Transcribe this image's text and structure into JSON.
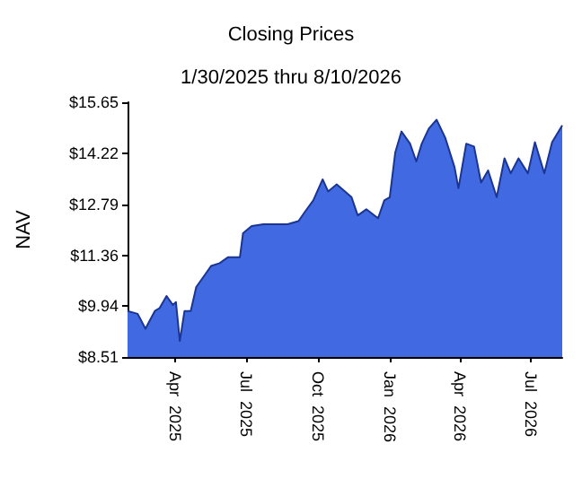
{
  "chart_data": {
    "type": "area",
    "title": "Closing Prices",
    "subtitle": "1/30/2025 thru 8/10/2026",
    "ylabel": "NAV",
    "x": [
      "2025-01-30",
      "2025-02-12",
      "2025-02-22",
      "2025-02-26",
      "2025-03-06",
      "2025-03-12",
      "2025-03-21",
      "2025-03-29",
      "2025-04-02",
      "2025-04-07",
      "2025-04-13",
      "2025-04-21",
      "2025-04-28",
      "2025-05-09",
      "2025-05-17",
      "2025-05-28",
      "2025-06-08",
      "2025-06-23",
      "2025-06-27",
      "2025-07-08",
      "2025-07-23",
      "2025-08-07",
      "2025-08-23",
      "2025-09-06",
      "2025-09-14",
      "2025-09-25",
      "2025-10-07",
      "2025-10-14",
      "2025-10-25",
      "2025-11-13",
      "2025-11-21",
      "2025-12-02",
      "2025-12-17",
      "2025-12-25",
      "2026-01-01",
      "2026-01-08",
      "2026-01-16",
      "2026-01-27",
      "2026-02-04",
      "2026-02-11",
      "2026-02-20",
      "2026-03-02",
      "2026-03-13",
      "2026-03-25",
      "2026-03-30",
      "2026-04-09",
      "2026-04-19",
      "2026-04-28",
      "2026-05-07",
      "2026-05-18",
      "2026-05-28",
      "2026-06-05",
      "2026-06-15",
      "2026-06-27",
      "2026-07-06",
      "2026-07-18",
      "2026-07-28",
      "2026-08-10"
    ],
    "series": [
      {
        "color": "#4169e1",
        "values": [
          9.8,
          9.72,
          9.3,
          9.47,
          9.8,
          9.88,
          10.22,
          9.97,
          10.05,
          8.96,
          9.8,
          9.8,
          10.47,
          10.81,
          11.06,
          11.14,
          11.31,
          11.31,
          11.98,
          12.18,
          12.23,
          12.23,
          12.23,
          12.32,
          12.57,
          12.9,
          13.49,
          13.15,
          13.35,
          12.99,
          12.48,
          12.65,
          12.4,
          12.9,
          12.99,
          14.24,
          14.83,
          14.49,
          13.99,
          14.49,
          14.91,
          15.16,
          14.66,
          13.83,
          13.24,
          14.49,
          14.41,
          13.4,
          13.74,
          12.99,
          14.08,
          13.66,
          14.08,
          13.66,
          14.53,
          13.66,
          14.53,
          15.0
        ]
      }
    ],
    "xlim": [
      "2025-01-30",
      "2026-08-10"
    ],
    "xticks": [
      {
        "value": "2025-04-01",
        "label": "Apr 2025"
      },
      {
        "value": "2025-07-01",
        "label": "Jul 2025"
      },
      {
        "value": "2025-10-01",
        "label": "Oct 2025"
      },
      {
        "value": "2026-01-01",
        "label": "Jan 2026"
      },
      {
        "value": "2026-04-01",
        "label": "Apr 2026"
      },
      {
        "value": "2026-07-01",
        "label": "Jul 2026"
      }
    ],
    "ylim": [
      8.51,
      15.65
    ],
    "yticks": [
      {
        "value": 8.51,
        "label": "$8.51"
      },
      {
        "value": 9.94,
        "label": "$9.94"
      },
      {
        "value": 11.36,
        "label": "$11.36"
      },
      {
        "value": 12.79,
        "label": "$12.79"
      },
      {
        "value": 14.22,
        "label": "$14.22"
      },
      {
        "value": 15.65,
        "label": "$15.65"
      }
    ],
    "grid": false
  }
}
